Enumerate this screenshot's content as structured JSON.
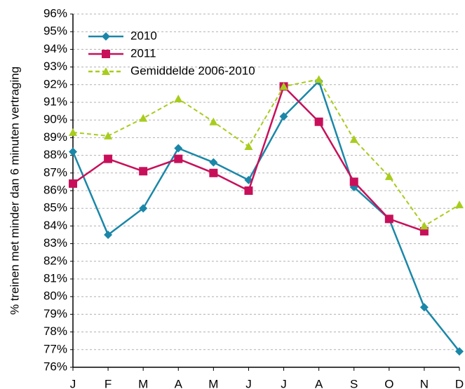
{
  "chart_data": {
    "type": "line",
    "ylabel": "% treinen met minder dan 6 minuten vertraging",
    "categories": [
      "J",
      "F",
      "M",
      "A",
      "M",
      "J",
      "J",
      "A",
      "S",
      "O",
      "N",
      "D"
    ],
    "series": [
      {
        "name": "2010",
        "color": "#1a87a8",
        "marker": "diamond",
        "line_style": "solid",
        "values": [
          88.2,
          83.5,
          85.0,
          88.4,
          87.6,
          86.6,
          90.2,
          92.2,
          86.2,
          84.4,
          79.4,
          76.9
        ]
      },
      {
        "name": "2011",
        "color": "#c8105a",
        "marker": "square",
        "line_style": "solid",
        "values": [
          86.4,
          87.8,
          87.1,
          87.8,
          87.0,
          86.0,
          91.9,
          89.9,
          86.5,
          84.4,
          83.7,
          null
        ]
      },
      {
        "name": "Gemiddelde 2006-2010",
        "color": "#a8cc1e",
        "marker": "triangle",
        "line_style": "dashed",
        "values": [
          89.3,
          89.1,
          90.1,
          91.2,
          89.9,
          88.5,
          91.9,
          92.3,
          88.9,
          86.8,
          84.0,
          85.2
        ]
      }
    ],
    "ylim": [
      76,
      96
    ],
    "yticks": [
      {
        "value": 76,
        "label": "76%"
      },
      {
        "value": 77,
        "label": "77%"
      },
      {
        "value": 78,
        "label": "78%"
      },
      {
        "value": 79,
        "label": "79%"
      },
      {
        "value": 80,
        "label": "80%"
      },
      {
        "value": 81,
        "label": "81%"
      },
      {
        "value": 82,
        "label": "82%"
      },
      {
        "value": 83,
        "label": "83%"
      },
      {
        "value": 84,
        "label": "84%"
      },
      {
        "value": 85,
        "label": "85%"
      },
      {
        "value": 86,
        "label": "86%"
      },
      {
        "value": 87,
        "label": "87%"
      },
      {
        "value": 88,
        "label": "88%"
      },
      {
        "value": 89,
        "label": "89%"
      },
      {
        "value": 90,
        "label": "90%"
      },
      {
        "value": 91,
        "label": "91%"
      },
      {
        "value": 92,
        "label": "92%"
      },
      {
        "value": 93,
        "label": "93%"
      },
      {
        "value": 94,
        "label": "94%"
      },
      {
        "value": 95,
        "label": "95%"
      },
      {
        "value": 96,
        "label": "96%"
      }
    ],
    "grid": true
  }
}
